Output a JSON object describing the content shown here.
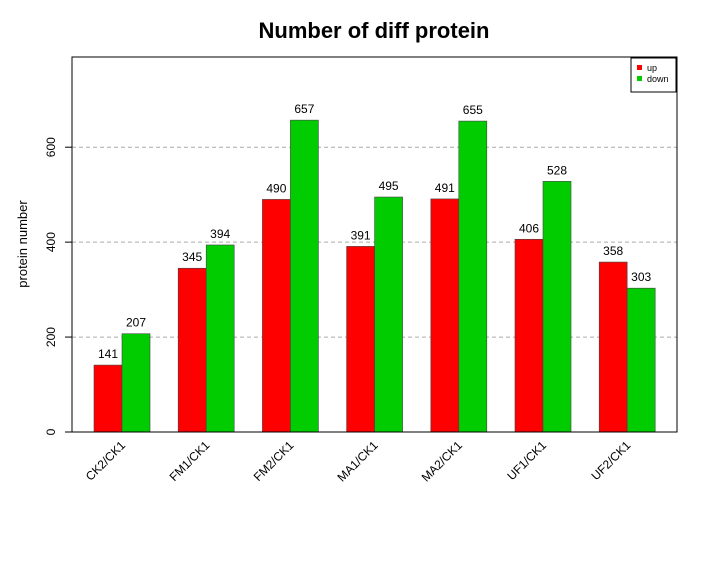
{
  "chart_data": {
    "type": "bar",
    "title": "Number of diff protein",
    "xlabel": "",
    "ylabel": "protein number",
    "categories": [
      "CK2/CK1",
      "FM1/CK1",
      "FM2/CK1",
      "MA1/CK1",
      "MA2/CK1",
      "UF1/CK1",
      "UF2/CK1"
    ],
    "series": [
      {
        "name": "up",
        "color": "#ff0000",
        "values": [
          141,
          345,
          490,
          391,
          491,
          406,
          358
        ]
      },
      {
        "name": "down",
        "color": "#00cc00",
        "values": [
          207,
          394,
          657,
          495,
          655,
          528,
          303
        ]
      }
    ],
    "ylim": [
      0,
      790
    ],
    "yticks": [
      "0",
      "200",
      "400",
      "600"
    ],
    "grid": "horizontal dashed",
    "legend": "top-right"
  }
}
